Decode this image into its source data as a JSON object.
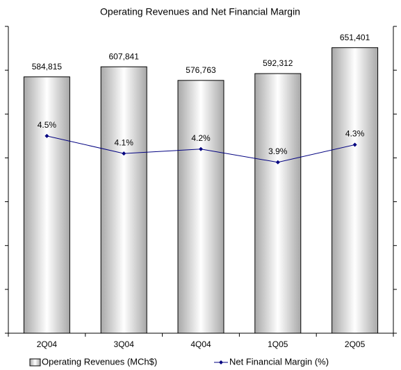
{
  "chart_data": {
    "type": "bar",
    "title": "Operating Revenues and Net Financial Margin",
    "categories": [
      "2Q04",
      "3Q04",
      "4Q04",
      "1Q05",
      "2Q05"
    ],
    "series": [
      {
        "name": "Operating Revenues (MCh$)",
        "type": "bar",
        "color": "#c8c8c8",
        "values": [
          584815,
          607841,
          576763,
          592312,
          651401
        ],
        "value_labels": [
          "584,815",
          "607,841",
          "576,763",
          "592,312",
          "651,401"
        ]
      },
      {
        "name": "Net Financial Margin (%)",
        "type": "line",
        "axis": "y2",
        "color": "#000080",
        "values": [
          4.5,
          4.1,
          4.2,
          3.9,
          4.3
        ],
        "value_labels": [
          "4.5%",
          "4.1%",
          "4.2%",
          "3.9%",
          "4.3%"
        ]
      }
    ],
    "ylim": [
      0,
      700000
    ],
    "yticks": [
      0,
      100000,
      200000,
      300000,
      400000,
      500000,
      600000,
      700000
    ],
    "y2lim": [
      0,
      7
    ],
    "y2ticks": [
      0,
      1,
      2,
      3,
      4,
      5,
      6,
      7
    ],
    "legend": "bottom"
  }
}
